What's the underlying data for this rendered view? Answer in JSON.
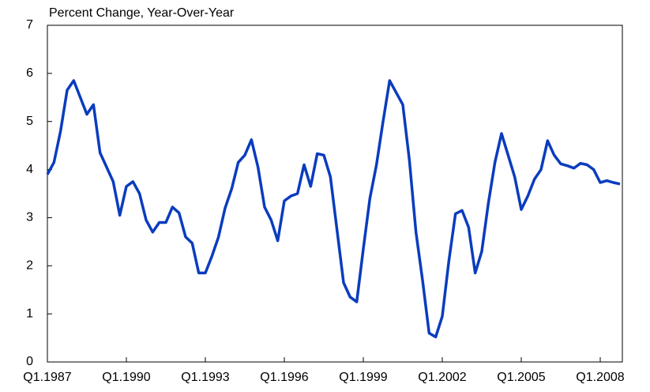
{
  "chart_data": {
    "type": "line",
    "title": "Percent Change, Year-Over-Year",
    "categories": [
      "Q1.1987",
      null,
      null,
      null,
      null,
      null,
      null,
      null,
      null,
      null,
      null,
      null,
      "Q1.1990",
      null,
      null,
      null,
      null,
      null,
      null,
      null,
      null,
      null,
      null,
      null,
      "Q1.1993",
      null,
      null,
      null,
      null,
      null,
      null,
      null,
      null,
      null,
      null,
      null,
      "Q1.1996",
      null,
      null,
      null,
      null,
      null,
      null,
      null,
      null,
      null,
      null,
      null,
      "Q1.1999",
      null,
      null,
      null,
      null,
      null,
      null,
      null,
      null,
      null,
      null,
      null,
      "Q1.2002",
      null,
      null,
      null,
      null,
      null,
      null,
      null,
      null,
      null,
      null,
      null,
      "Q1.2005",
      null,
      null,
      null,
      null,
      null,
      null,
      null,
      null,
      null,
      null,
      null,
      "Q1.2008",
      null,
      null,
      null
    ],
    "values": [
      3.9,
      4.15,
      4.8,
      5.65,
      5.85,
      5.5,
      5.15,
      5.35,
      4.35,
      4.05,
      3.75,
      3.05,
      3.65,
      3.75,
      3.5,
      2.95,
      2.7,
      2.9,
      2.9,
      3.22,
      3.1,
      2.6,
      2.47,
      1.85,
      1.85,
      2.2,
      2.6,
      3.2,
      3.6,
      4.15,
      4.3,
      4.62,
      4.05,
      3.22,
      2.95,
      2.52,
      3.35,
      3.45,
      3.5,
      4.1,
      3.65,
      4.33,
      4.3,
      3.85,
      2.75,
      1.65,
      1.35,
      1.25,
      2.35,
      3.4,
      4.1,
      5.0,
      5.85,
      5.6,
      5.35,
      4.2,
      2.7,
      1.7,
      0.6,
      0.52,
      0.95,
      2.1,
      3.08,
      3.15,
      2.8,
      1.85,
      2.3,
      3.3,
      4.15,
      4.75,
      4.3,
      3.85,
      3.17,
      3.45,
      3.8,
      4.0,
      4.6,
      4.3,
      4.12,
      4.08,
      4.03,
      4.13,
      4.1,
      4.0,
      3.73,
      3.77,
      3.73,
      3.7
    ],
    "color": "#0a3cbe",
    "ylim": [
      0,
      7
    ],
    "yticks": [
      0,
      1,
      2,
      3,
      4,
      5,
      6,
      7
    ]
  }
}
